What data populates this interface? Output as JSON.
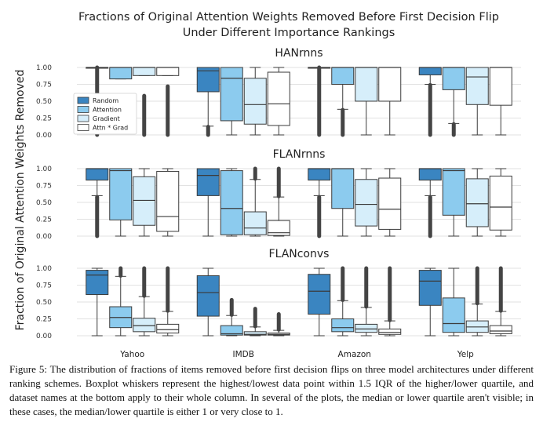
{
  "chart_data": {
    "type": "boxplot",
    "title": "Fractions of Original Attention Weights Removed Before First Decision Flip",
    "subtitle": "Under Different Importance Rankings",
    "ylabel": "Fraction of Original Attention Weights Removed",
    "ylim": [
      0,
      1.0
    ],
    "yticks": [
      "0.00",
      "0.25",
      "0.50",
      "0.75",
      "1.00"
    ],
    "categories": [
      "Yahoo",
      "IMDB",
      "Amazon",
      "Yelp"
    ],
    "legend": {
      "placement": "left, inside top panel",
      "entries": [
        {
          "name": "Random",
          "color": "#3a85c1"
        },
        {
          "name": "Attention",
          "color": "#8ccbee"
        },
        {
          "name": "Gradient",
          "color": "#d6eefa"
        },
        {
          "name": "Attn * Grad",
          "color": "#ffffff"
        }
      ]
    },
    "panels": [
      {
        "title": "HANrnns",
        "groups": [
          [
            {
              "wlo": 1.0,
              "q1": 1.0,
              "med": 1.0,
              "q3": 1.0,
              "whi": 1.0,
              "outlier_range": [
                0.0,
                1.0
              ]
            },
            {
              "wlo": 0.83,
              "q1": 0.83,
              "med": 1.0,
              "q3": 1.0,
              "whi": 1.0,
              "outlier_range": null
            },
            {
              "wlo": 0.88,
              "q1": 0.88,
              "med": 1.0,
              "q3": 1.0,
              "whi": 1.0,
              "outlier_range": [
                0.0,
                0.58
              ]
            },
            {
              "wlo": 0.88,
              "q1": 0.88,
              "med": 1.0,
              "q3": 1.0,
              "whi": 1.0,
              "outlier_range": [
                0.0,
                0.72
              ]
            }
          ],
          [
            {
              "wlo": 0.13,
              "q1": 0.64,
              "med": 0.95,
              "q3": 1.0,
              "whi": 1.0,
              "outlier_range": [
                0.0,
                0.12
              ]
            },
            {
              "wlo": 0.0,
              "q1": 0.21,
              "med": 0.84,
              "q3": 1.0,
              "whi": 1.0,
              "outlier_range": null
            },
            {
              "wlo": 0.0,
              "q1": 0.16,
              "med": 0.45,
              "q3": 0.84,
              "whi": 1.0,
              "outlier_range": null
            },
            {
              "wlo": 0.0,
              "q1": 0.14,
              "med": 0.46,
              "q3": 0.93,
              "whi": 1.0,
              "outlier_range": null
            }
          ],
          [
            {
              "wlo": 1.0,
              "q1": 1.0,
              "med": 1.0,
              "q3": 1.0,
              "whi": 1.0,
              "outlier_range": [
                0.0,
                1.0
              ]
            },
            {
              "wlo": 0.38,
              "q1": 0.75,
              "med": 1.0,
              "q3": 1.0,
              "whi": 1.0,
              "outlier_range": [
                0.0,
                0.37
              ]
            },
            {
              "wlo": 0.0,
              "q1": 0.5,
              "med": 1.0,
              "q3": 1.0,
              "whi": 1.0,
              "outlier_range": null
            },
            {
              "wlo": 0.0,
              "q1": 0.5,
              "med": 1.0,
              "q3": 1.0,
              "whi": 1.0,
              "outlier_range": null
            }
          ],
          [
            {
              "wlo": 0.75,
              "q1": 0.89,
              "med": 1.0,
              "q3": 1.0,
              "whi": 1.0,
              "outlier_range": [
                0.0,
                0.74
              ]
            },
            {
              "wlo": 0.17,
              "q1": 0.67,
              "med": 1.0,
              "q3": 1.0,
              "whi": 1.0,
              "outlier_range": [
                0.0,
                0.16
              ]
            },
            {
              "wlo": 0.0,
              "q1": 0.45,
              "med": 0.86,
              "q3": 1.0,
              "whi": 1.0,
              "outlier_range": null
            },
            {
              "wlo": 0.0,
              "q1": 0.44,
              "med": 1.0,
              "q3": 1.0,
              "whi": 1.0,
              "outlier_range": null
            }
          ]
        ]
      },
      {
        "title": "FLANrnns",
        "groups": [
          [
            {
              "wlo": 0.6,
              "q1": 0.83,
              "med": 1.0,
              "q3": 1.0,
              "whi": 1.0,
              "outlier_range": [
                0.0,
                0.58
              ]
            },
            {
              "wlo": 0.0,
              "q1": 0.24,
              "med": 0.97,
              "q3": 1.0,
              "whi": 1.0,
              "outlier_range": null
            },
            {
              "wlo": 0.0,
              "q1": 0.16,
              "med": 0.53,
              "q3": 0.88,
              "whi": 1.0,
              "outlier_range": null
            },
            {
              "wlo": 0.0,
              "q1": 0.07,
              "med": 0.29,
              "q3": 0.96,
              "whi": 1.0,
              "outlier_range": null
            }
          ],
          [
            {
              "wlo": 0.0,
              "q1": 0.6,
              "med": 0.9,
              "q3": 1.0,
              "whi": 1.0,
              "outlier_range": null
            },
            {
              "wlo": 0.0,
              "q1": 0.02,
              "med": 0.41,
              "q3": 0.97,
              "whi": 1.0,
              "outlier_range": null
            },
            {
              "wlo": 0.0,
              "q1": 0.02,
              "med": 0.12,
              "q3": 0.36,
              "whi": 0.84,
              "outlier_range": [
                0.85,
                1.0
              ]
            },
            {
              "wlo": 0.0,
              "q1": 0.01,
              "med": 0.05,
              "q3": 0.23,
              "whi": 0.58,
              "outlier_range": [
                0.59,
                1.0
              ]
            }
          ],
          [
            {
              "wlo": 0.6,
              "q1": 0.83,
              "med": 1.0,
              "q3": 1.0,
              "whi": 1.0,
              "outlier_range": [
                0.0,
                0.58
              ]
            },
            {
              "wlo": 0.0,
              "q1": 0.41,
              "med": 1.0,
              "q3": 1.0,
              "whi": 1.0,
              "outlier_range": null
            },
            {
              "wlo": 0.0,
              "q1": 0.15,
              "med": 0.47,
              "q3": 0.84,
              "whi": 1.0,
              "outlier_range": null
            },
            {
              "wlo": 0.0,
              "q1": 0.1,
              "med": 0.4,
              "q3": 0.86,
              "whi": 1.0,
              "outlier_range": null
            }
          ],
          [
            {
              "wlo": 0.6,
              "q1": 0.83,
              "med": 1.0,
              "q3": 1.0,
              "whi": 1.0,
              "outlier_range": [
                0.0,
                0.58
              ]
            },
            {
              "wlo": 0.0,
              "q1": 0.31,
              "med": 0.97,
              "q3": 1.0,
              "whi": 1.0,
              "outlier_range": null
            },
            {
              "wlo": 0.0,
              "q1": 0.14,
              "med": 0.48,
              "q3": 0.85,
              "whi": 1.0,
              "outlier_range": null
            },
            {
              "wlo": 0.0,
              "q1": 0.09,
              "med": 0.43,
              "q3": 0.89,
              "whi": 1.0,
              "outlier_range": null
            }
          ]
        ]
      },
      {
        "title": "FLANconvs",
        "groups": [
          [
            {
              "wlo": 0.0,
              "q1": 0.61,
              "med": 0.9,
              "q3": 0.97,
              "whi": 1.0,
              "outlier_range": null
            },
            {
              "wlo": 0.0,
              "q1": 0.12,
              "med": 0.27,
              "q3": 0.43,
              "whi": 0.88,
              "outlier_range": [
                0.89,
                1.0
              ]
            },
            {
              "wlo": 0.0,
              "q1": 0.06,
              "med": 0.15,
              "q3": 0.26,
              "whi": 0.58,
              "outlier_range": [
                0.59,
                1.0
              ]
            },
            {
              "wlo": 0.0,
              "q1": 0.04,
              "med": 0.09,
              "q3": 0.17,
              "whi": 0.36,
              "outlier_range": [
                0.37,
                1.0
              ]
            }
          ],
          [
            {
              "wlo": 0.0,
              "q1": 0.29,
              "med": 0.64,
              "q3": 0.89,
              "whi": 1.0,
              "outlier_range": null
            },
            {
              "wlo": 0.0,
              "q1": 0.01,
              "med": 0.03,
              "q3": 0.15,
              "whi": 0.3,
              "outlier_range": [
                0.31,
                0.53
              ]
            },
            {
              "wlo": 0.0,
              "q1": 0.01,
              "med": 0.02,
              "q3": 0.06,
              "whi": 0.13,
              "outlier_range": [
                0.14,
                0.4
              ]
            },
            {
              "wlo": 0.0,
              "q1": 0.01,
              "med": 0.02,
              "q3": 0.04,
              "whi": 0.08,
              "outlier_range": [
                0.09,
                0.32
              ]
            }
          ],
          [
            {
              "wlo": 0.0,
              "q1": 0.32,
              "med": 0.66,
              "q3": 0.91,
              "whi": 1.0,
              "outlier_range": null
            },
            {
              "wlo": 0.0,
              "q1": 0.06,
              "med": 0.12,
              "q3": 0.25,
              "whi": 0.52,
              "outlier_range": [
                0.53,
                1.0
              ]
            },
            {
              "wlo": 0.0,
              "q1": 0.05,
              "med": 0.1,
              "q3": 0.17,
              "whi": 0.42,
              "outlier_range": [
                0.43,
                1.0
              ]
            },
            {
              "wlo": 0.0,
              "q1": 0.02,
              "med": 0.05,
              "q3": 0.1,
              "whi": 0.22,
              "outlier_range": [
                0.23,
                1.0
              ]
            }
          ],
          [
            {
              "wlo": 0.0,
              "q1": 0.45,
              "med": 0.81,
              "q3": 0.97,
              "whi": 1.0,
              "outlier_range": null
            },
            {
              "wlo": 0.0,
              "q1": 0.05,
              "med": 0.18,
              "q3": 0.56,
              "whi": 1.0,
              "outlier_range": null
            },
            {
              "wlo": 0.0,
              "q1": 0.05,
              "med": 0.13,
              "q3": 0.22,
              "whi": 0.47,
              "outlier_range": [
                0.48,
                1.0
              ]
            },
            {
              "wlo": 0.0,
              "q1": 0.03,
              "med": 0.07,
              "q3": 0.15,
              "whi": 0.36,
              "outlier_range": [
                0.37,
                1.0
              ]
            }
          ]
        ]
      }
    ]
  },
  "caption": "Figure 5: The distribution of fractions of items removed before first decision flips on three model architectures under different ranking schemes. Boxplot whiskers represent the highest/lowest data point within 1.5 IQR of the higher/lower quartile, and dataset names at the bottom apply to their whole column. In several of the plots, the median or lower quartile aren't visible; in these cases, the median/lower quartile is either 1 or very close to 1."
}
